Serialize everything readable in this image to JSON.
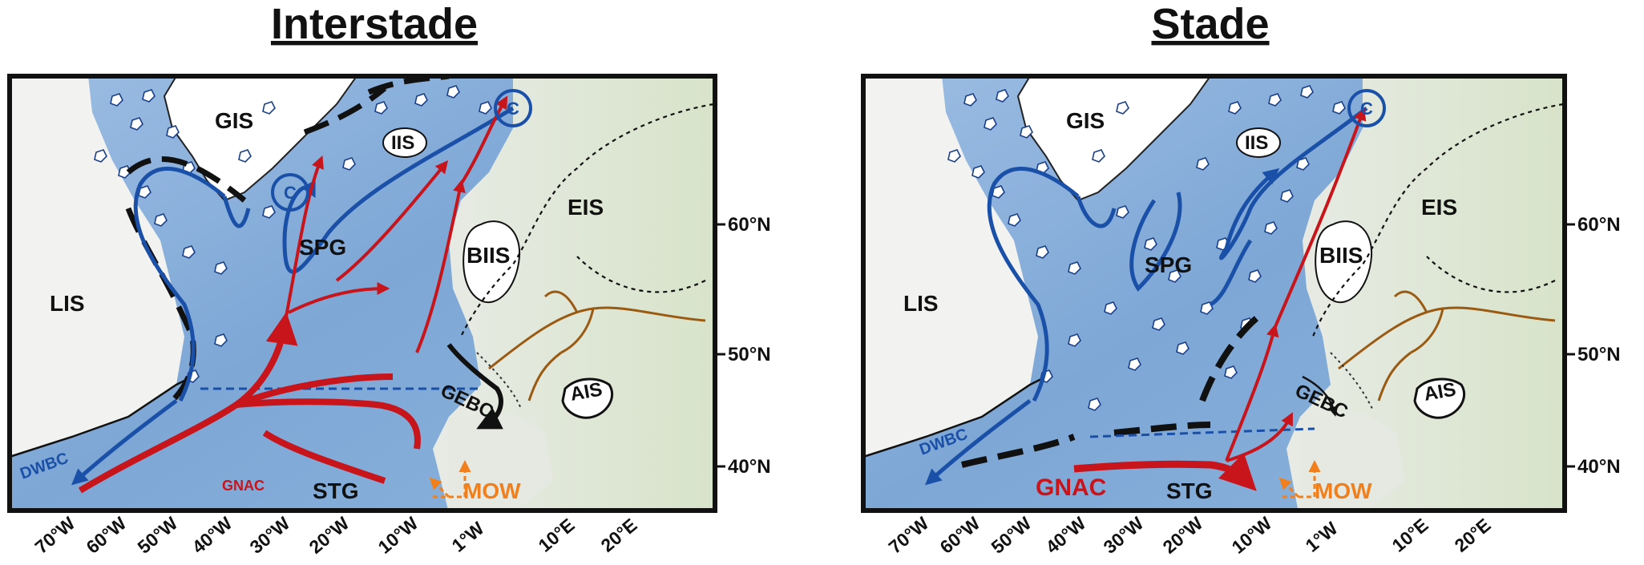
{
  "panels": [
    {
      "id": "interstade",
      "title": "Interstade",
      "labels": {
        "gis": "GIS",
        "iis": "IIS",
        "eis": "EIS",
        "biis": "BIIS",
        "lis": "LIS",
        "spg": "SPG",
        "stg": "STG",
        "gebc": "GEBC",
        "ais": "AIS",
        "dwbc": "DWBC",
        "gnac": "GNAC",
        "mow": "MOW",
        "c1": "C",
        "c2": "C"
      },
      "lat_ticks": [
        "60°N",
        "50°N",
        "40°N"
      ],
      "lon_ticks": [
        "70°W",
        "60°W",
        "50°W",
        "40°W",
        "30°W",
        "20°W",
        "10°W",
        "1°W",
        "10°E",
        "20°E"
      ]
    },
    {
      "id": "stade",
      "title": "Stade",
      "labels": {
        "gis": "GIS",
        "iis": "IIS",
        "eis": "EIS",
        "biis": "BIIS",
        "lis": "LIS",
        "spg": "SPG",
        "stg": "STG",
        "gebc": "GEBC",
        "ais": "AIS",
        "dwbc": "DWBC",
        "gnac": "GNAC",
        "mow": "MOW",
        "c1": "C"
      },
      "lat_ticks": [
        "60°N",
        "50°N",
        "40°N"
      ],
      "lon_ticks": [
        "70°W",
        "60°W",
        "50°W",
        "40°W",
        "30°W",
        "20°W",
        "10°W",
        "1°W",
        "10°E",
        "20°E"
      ]
    }
  ],
  "colors": {
    "ocean": "#8fb4dc",
    "ocean_deep": "#6f9bd0",
    "land": "#e9ece6",
    "land_green": "#dbe6cf",
    "current_blue": "#1a50a8",
    "current_red": "#c8141b",
    "mow_orange": "#f07f1c",
    "river_brown": "#9a5a12"
  }
}
